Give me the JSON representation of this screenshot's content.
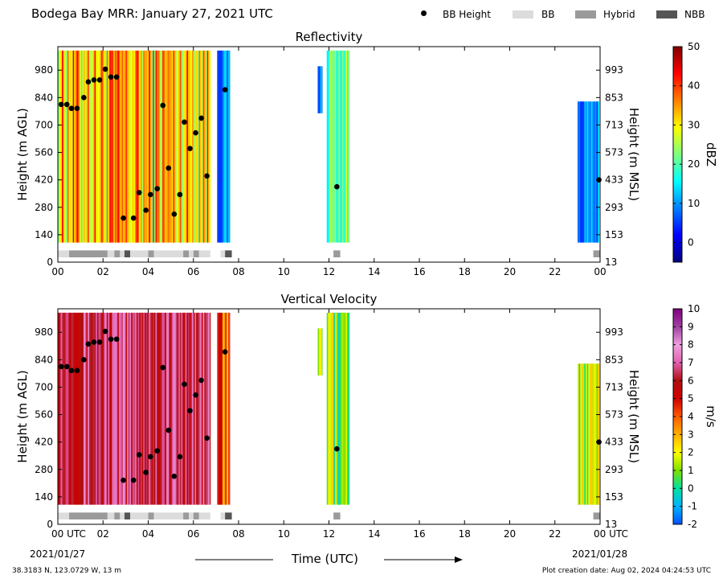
{
  "title": "Bodega Bay MRR:  January 27, 2021 UTC",
  "legend": [
    {
      "label": "BB Height",
      "kind": "dot",
      "color": "#000000"
    },
    {
      "label": "BB",
      "kind": "rect",
      "color": "#dcdcdc"
    },
    {
      "label": "Hybrid",
      "kind": "rect",
      "color": "#9a9a9a"
    },
    {
      "label": "NBB",
      "kind": "rect",
      "color": "#555555"
    }
  ],
  "footer": {
    "location": "38.3183 N, 123.0729 W, 13 m",
    "created": "Plot creation date: Aug 02, 2024 04:24:53 UTC",
    "date_start": "2021/01/27",
    "date_end": "2021/01/28",
    "xlabel": "Time (UTC)"
  },
  "chart_data": [
    {
      "type": "heatmap",
      "title": "Reflectivity",
      "ylabel": "Height (m AGL)",
      "ylabel_right": "Height (m MSL)",
      "xlim": [
        0,
        24
      ],
      "ylim": [
        0,
        1100
      ],
      "xticks": [
        "00",
        "02",
        "04",
        "06",
        "08",
        "10",
        "12",
        "14",
        "16",
        "18",
        "20",
        "22",
        "00"
      ],
      "yticks": [
        0,
        140,
        280,
        420,
        560,
        700,
        840,
        980
      ],
      "yticks_right": [
        "13",
        "153",
        "293",
        "433",
        "573",
        "713",
        "853",
        "993"
      ],
      "colorbar": {
        "label": "dBZ",
        "min": -5,
        "max": 50,
        "ticks": [
          0,
          10,
          20,
          30,
          40,
          50
        ],
        "stops": [
          "#00007f",
          "#0000ff",
          "#007fff",
          "#00ffff",
          "#7fff7f",
          "#ffff00",
          "#ff7f00",
          "#ff0000",
          "#7f0000"
        ]
      },
      "bands": [
        {
          "t0": 0.0,
          "t1": 6.75,
          "hmin": 100,
          "hmax": 1080,
          "regime": "warm"
        },
        {
          "t0": 7.05,
          "t1": 7.6,
          "hmin": 100,
          "hmax": 1080,
          "regime": "cool"
        },
        {
          "t0": 11.5,
          "t1": 11.7,
          "hmin": 760,
          "hmax": 1000,
          "regime": "cool"
        },
        {
          "t0": 11.9,
          "t1": 12.9,
          "hmin": 100,
          "hmax": 1080,
          "regime": "mid"
        },
        {
          "t0": 23.0,
          "t1": 23.95,
          "hmin": 100,
          "hmax": 820,
          "regime": "cool"
        }
      ],
      "bb_height": [
        {
          "t": 0.15,
          "h": 805
        },
        {
          "t": 0.4,
          "h": 805
        },
        {
          "t": 0.6,
          "h": 785
        },
        {
          "t": 0.85,
          "h": 785
        },
        {
          "t": 1.15,
          "h": 840
        },
        {
          "t": 1.35,
          "h": 920
        },
        {
          "t": 1.6,
          "h": 930
        },
        {
          "t": 1.85,
          "h": 930
        },
        {
          "t": 2.1,
          "h": 985
        },
        {
          "t": 2.35,
          "h": 945
        },
        {
          "t": 2.6,
          "h": 945
        },
        {
          "t": 2.9,
          "h": 225
        },
        {
          "t": 3.35,
          "h": 225
        },
        {
          "t": 3.6,
          "h": 355
        },
        {
          "t": 3.9,
          "h": 265
        },
        {
          "t": 4.1,
          "h": 345
        },
        {
          "t": 4.4,
          "h": 375
        },
        {
          "t": 4.65,
          "h": 800
        },
        {
          "t": 4.9,
          "h": 480
        },
        {
          "t": 5.15,
          "h": 245
        },
        {
          "t": 5.4,
          "h": 345
        },
        {
          "t": 5.6,
          "h": 715
        },
        {
          "t": 5.85,
          "h": 580
        },
        {
          "t": 6.1,
          "h": 660
        },
        {
          "t": 6.35,
          "h": 735
        },
        {
          "t": 6.6,
          "h": 440
        },
        {
          "t": 7.4,
          "h": 880
        },
        {
          "t": 12.35,
          "h": 385
        },
        {
          "t": 23.95,
          "h": 420
        }
      ],
      "bb_type": [
        {
          "t0": 0.0,
          "t1": 0.5,
          "type": "BB"
        },
        {
          "t0": 0.5,
          "t1": 2.2,
          "type": "Hybrid"
        },
        {
          "t0": 2.2,
          "t1": 2.5,
          "type": "BB"
        },
        {
          "t0": 2.5,
          "t1": 2.75,
          "type": "Hybrid"
        },
        {
          "t0": 2.75,
          "t1": 2.95,
          "type": "BB"
        },
        {
          "t0": 2.95,
          "t1": 3.2,
          "type": "NBB"
        },
        {
          "t0": 3.2,
          "t1": 4.0,
          "type": "BB"
        },
        {
          "t0": 4.0,
          "t1": 4.25,
          "type": "Hybrid"
        },
        {
          "t0": 4.25,
          "t1": 5.55,
          "type": "BB"
        },
        {
          "t0": 5.55,
          "t1": 5.8,
          "type": "Hybrid"
        },
        {
          "t0": 5.8,
          "t1": 6.0,
          "type": "BB"
        },
        {
          "t0": 6.0,
          "t1": 6.25,
          "type": "Hybrid"
        },
        {
          "t0": 6.25,
          "t1": 6.75,
          "type": "BB"
        },
        {
          "t0": 7.2,
          "t1": 7.4,
          "type": "BB"
        },
        {
          "t0": 7.4,
          "t1": 7.7,
          "type": "NBB"
        },
        {
          "t0": 12.2,
          "t1": 12.5,
          "type": "Hybrid"
        },
        {
          "t0": 23.7,
          "t1": 24.0,
          "type": "Hybrid"
        }
      ]
    },
    {
      "type": "heatmap",
      "title": "Vertical Velocity",
      "ylabel": "Height (m AGL)",
      "ylabel_right": "Height (m MSL)",
      "xlim": [
        0,
        24
      ],
      "ylim": [
        0,
        1100
      ],
      "xticks": [
        "00 UTC",
        "02",
        "04",
        "06",
        "08",
        "10",
        "12",
        "14",
        "16",
        "18",
        "20",
        "22",
        "00 UTC"
      ],
      "yticks": [
        0,
        140,
        280,
        420,
        560,
        700,
        840,
        980
      ],
      "yticks_right": [
        "13",
        "153",
        "293",
        "433",
        "573",
        "713",
        "853",
        "993"
      ],
      "colorbar": {
        "label": "m/s",
        "min": -2,
        "max": 10,
        "ticks": [
          -2,
          -1,
          0,
          1,
          2,
          3,
          4,
          5,
          6,
          7,
          8,
          9,
          10
        ],
        "stops": [
          "#0050ff",
          "#00b4ff",
          "#00e0a0",
          "#7fe000",
          "#ffff00",
          "#ffb000",
          "#ff5a00",
          "#d00000",
          "#b01010",
          "#e060b0",
          "#f0a0e0",
          "#a040a0",
          "#800080"
        ]
      },
      "bands": [
        {
          "t0": 0.0,
          "t1": 6.75,
          "hmin": 100,
          "hmax": 1080,
          "regime": "fall"
        },
        {
          "t0": 7.05,
          "t1": 7.6,
          "hmin": 100,
          "hmax": 1080,
          "regime": "fallmid"
        },
        {
          "t0": 11.5,
          "t1": 11.7,
          "hmin": 760,
          "hmax": 1000,
          "regime": "slow"
        },
        {
          "t0": 11.9,
          "t1": 12.9,
          "hmin": 100,
          "hmax": 1080,
          "regime": "slow"
        },
        {
          "t0": 23.0,
          "t1": 23.95,
          "hmin": 100,
          "hmax": 820,
          "regime": "slow"
        }
      ],
      "bb_height": [
        {
          "t": 0.15,
          "h": 805
        },
        {
          "t": 0.4,
          "h": 805
        },
        {
          "t": 0.6,
          "h": 785
        },
        {
          "t": 0.85,
          "h": 785
        },
        {
          "t": 1.15,
          "h": 840
        },
        {
          "t": 1.35,
          "h": 920
        },
        {
          "t": 1.6,
          "h": 930
        },
        {
          "t": 1.85,
          "h": 930
        },
        {
          "t": 2.1,
          "h": 985
        },
        {
          "t": 2.35,
          "h": 945
        },
        {
          "t": 2.6,
          "h": 945
        },
        {
          "t": 2.9,
          "h": 225
        },
        {
          "t": 3.35,
          "h": 225
        },
        {
          "t": 3.6,
          "h": 355
        },
        {
          "t": 3.9,
          "h": 265
        },
        {
          "t": 4.1,
          "h": 345
        },
        {
          "t": 4.4,
          "h": 375
        },
        {
          "t": 4.65,
          "h": 800
        },
        {
          "t": 4.9,
          "h": 480
        },
        {
          "t": 5.15,
          "h": 245
        },
        {
          "t": 5.4,
          "h": 345
        },
        {
          "t": 5.6,
          "h": 715
        },
        {
          "t": 5.85,
          "h": 580
        },
        {
          "t": 6.1,
          "h": 660
        },
        {
          "t": 6.35,
          "h": 735
        },
        {
          "t": 6.6,
          "h": 440
        },
        {
          "t": 7.4,
          "h": 880
        },
        {
          "t": 12.35,
          "h": 385
        },
        {
          "t": 23.95,
          "h": 420
        }
      ],
      "bb_type": [
        {
          "t0": 0.0,
          "t1": 0.5,
          "type": "BB"
        },
        {
          "t0": 0.5,
          "t1": 2.2,
          "type": "Hybrid"
        },
        {
          "t0": 2.2,
          "t1": 2.5,
          "type": "BB"
        },
        {
          "t0": 2.5,
          "t1": 2.75,
          "type": "Hybrid"
        },
        {
          "t0": 2.75,
          "t1": 2.95,
          "type": "BB"
        },
        {
          "t0": 2.95,
          "t1": 3.2,
          "type": "NBB"
        },
        {
          "t0": 3.2,
          "t1": 4.0,
          "type": "BB"
        },
        {
          "t0": 4.0,
          "t1": 4.25,
          "type": "Hybrid"
        },
        {
          "t0": 4.25,
          "t1": 5.55,
          "type": "BB"
        },
        {
          "t0": 5.55,
          "t1": 5.8,
          "type": "Hybrid"
        },
        {
          "t0": 5.8,
          "t1": 6.0,
          "type": "BB"
        },
        {
          "t0": 6.0,
          "t1": 6.25,
          "type": "Hybrid"
        },
        {
          "t0": 6.25,
          "t1": 6.75,
          "type": "BB"
        },
        {
          "t0": 7.2,
          "t1": 7.4,
          "type": "BB"
        },
        {
          "t0": 7.4,
          "t1": 7.7,
          "type": "NBB"
        },
        {
          "t0": 12.2,
          "t1": 12.5,
          "type": "Hybrid"
        },
        {
          "t0": 23.7,
          "t1": 24.0,
          "type": "Hybrid"
        }
      ]
    }
  ]
}
